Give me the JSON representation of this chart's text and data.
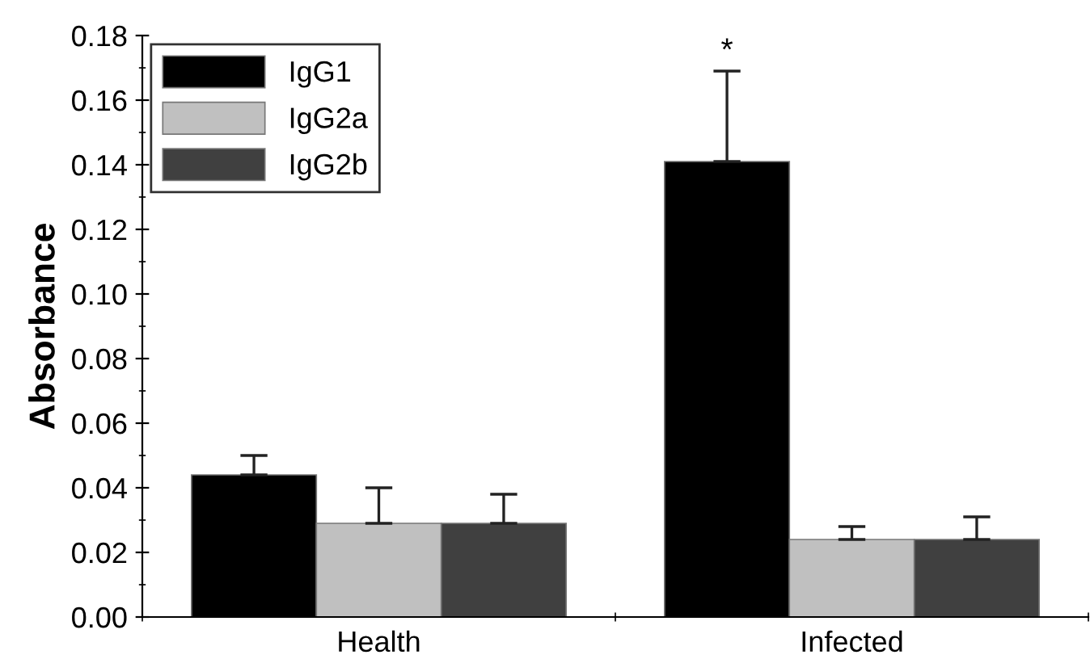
{
  "chart_data": {
    "type": "bar",
    "ylabel": "Absorbance",
    "categories": [
      "Health",
      "Infected"
    ],
    "series": [
      {
        "name": "IgG1",
        "color": "#000000",
        "values": [
          0.044,
          0.141
        ],
        "errors": [
          [
            0.044,
            0.05
          ],
          [
            0.141,
            0.169
          ]
        ]
      },
      {
        "name": "IgG2a",
        "color": "#c0c0c0",
        "values": [
          0.029,
          0.024
        ],
        "errors": [
          [
            0.029,
            0.04
          ],
          [
            0.024,
            0.028
          ]
        ]
      },
      {
        "name": "IgG2b",
        "color": "#404040",
        "values": [
          0.029,
          0.024
        ],
        "errors": [
          [
            0.029,
            0.038
          ],
          [
            0.024,
            0.031
          ]
        ]
      }
    ],
    "ylim": [
      0,
      0.18
    ],
    "yticks": [
      {
        "value": 0,
        "label": "0.00"
      },
      {
        "value": 0.02,
        "label": "0.02"
      },
      {
        "value": 0.04,
        "label": "0.04"
      },
      {
        "value": 0.06,
        "label": "0.06"
      },
      {
        "value": 0.08,
        "label": "0.08"
      },
      {
        "value": 0.1,
        "label": "0.10"
      },
      {
        "value": 0.12,
        "label": "0.12"
      },
      {
        "value": 0.14,
        "label": "0.14"
      },
      {
        "value": 0.16,
        "label": "0.16"
      },
      {
        "value": 0.18,
        "label": "0.18"
      }
    ],
    "annotations": [
      "*"
    ],
    "legend": "top left",
    "grid": false
  }
}
